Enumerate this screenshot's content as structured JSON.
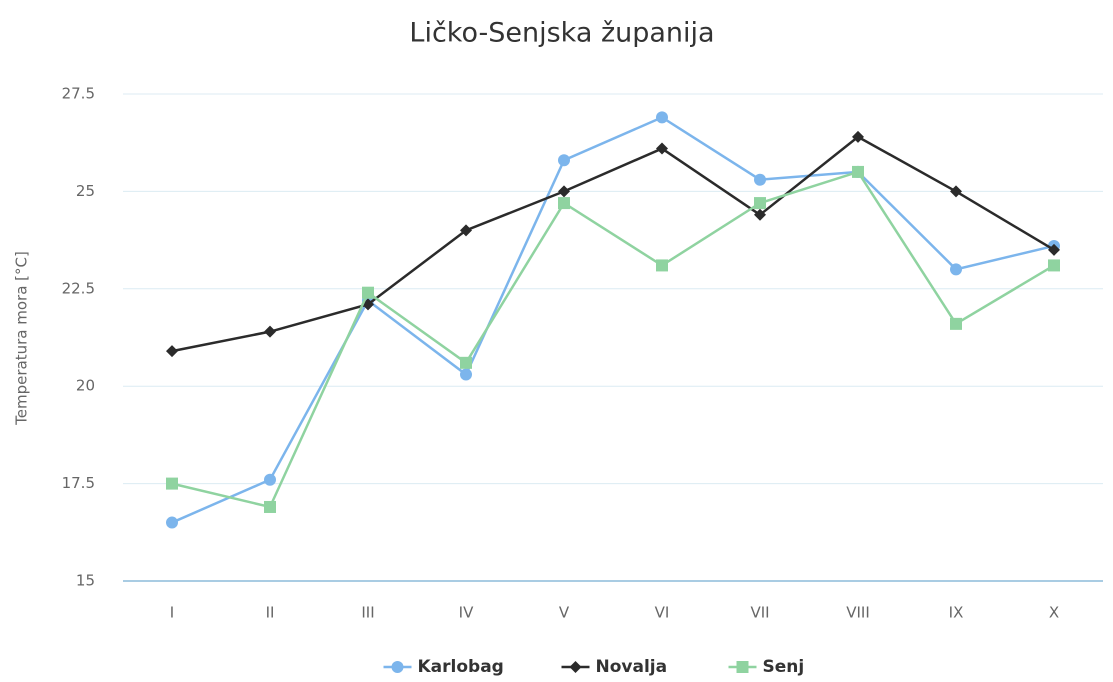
{
  "chart_data": {
    "type": "line",
    "title": "Ličko-Senjska županija",
    "y_label": "Temperatura mora [°C]",
    "categories": [
      "I",
      "II",
      "III",
      "IV",
      "V",
      "VI",
      "VII",
      "VIII",
      "IX",
      "X"
    ],
    "series": [
      {
        "name": "Karlobag",
        "color": "#7cb5ec",
        "marker": "circle",
        "values": [
          16.5,
          17.6,
          22.2,
          20.3,
          25.8,
          26.9,
          25.3,
          25.5,
          23.0,
          23.6
        ]
      },
      {
        "name": "Novalja",
        "color": "#2b2b2b",
        "marker": "diamond",
        "values": [
          20.9,
          21.4,
          22.1,
          24.0,
          25.0,
          26.1,
          24.4,
          26.4,
          25.0,
          23.5
        ]
      },
      {
        "name": "Senj",
        "color": "#8fd3a0",
        "marker": "square",
        "values": [
          17.5,
          16.9,
          22.4,
          20.6,
          24.7,
          23.1,
          24.7,
          25.5,
          21.6,
          23.1
        ]
      }
    ],
    "ylim": [
      15,
      27.5
    ],
    "yticks": [
      15,
      17.5,
      20,
      22.5,
      25,
      27.5
    ],
    "grid": true,
    "legend": "bottom"
  }
}
